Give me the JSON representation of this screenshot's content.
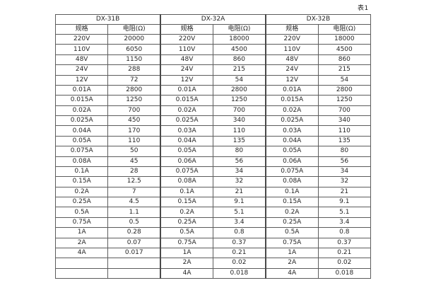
{
  "page_label": "表1",
  "table": {
    "groups": [
      {
        "name": "DX-31B",
        "col_headers": [
          "规格",
          "电阻(Ω)"
        ]
      },
      {
        "name": "DX-32A",
        "col_headers": [
          "规格",
          "电阻(Ω)"
        ]
      },
      {
        "name": "DX-32B",
        "col_headers": [
          "规格",
          "电阻(Ω)"
        ]
      }
    ],
    "rows": [
      [
        "220V",
        "20000",
        "220V",
        "18000",
        "220V",
        "18000"
      ],
      [
        "110V",
        "6050",
        "110V",
        "4500",
        "110V",
        "4500"
      ],
      [
        "48V",
        "1150",
        "48V",
        "860",
        "48V",
        "860"
      ],
      [
        "24V",
        "288",
        "24V",
        "215",
        "24V",
        "215"
      ],
      [
        "12V",
        "72",
        "12V",
        "54",
        "12V",
        "54"
      ],
      [
        "0.01A",
        "2800",
        "0.01A",
        "2800",
        "0.01A",
        "2800"
      ],
      [
        "0.015A",
        "1250",
        "0.015A",
        "1250",
        "0.015A",
        "1250"
      ],
      [
        "0.02A",
        "700",
        "0.02A",
        "700",
        "0.02A",
        "700"
      ],
      [
        "0.025A",
        "450",
        "0.025A",
        "340",
        "0.025A",
        "340"
      ],
      [
        "0.04A",
        "170",
        "0.03A",
        "110",
        "0.03A",
        "110"
      ],
      [
        "0.05A",
        "110",
        "0.04A",
        "135",
        "0.04A",
        "135"
      ],
      [
        "0.075A",
        "50",
        "0.05A",
        "80",
        "0.05A",
        "80"
      ],
      [
        "0.08A",
        "45",
        "0.06A",
        "56",
        "0.06A",
        "56"
      ],
      [
        "0.1A",
        "28",
        "0.075A",
        "34",
        "0.075A",
        "34"
      ],
      [
        "0.15A",
        "12.5",
        "0.08A",
        "32",
        "0.08A",
        "32"
      ],
      [
        "0.2A",
        "7",
        "0.1A",
        "21",
        "0.1A",
        "21"
      ],
      [
        "0.25A",
        "4.5",
        "0.15A",
        "9.1",
        "0.15A",
        "9.1"
      ],
      [
        "0.5A",
        "1.1",
        "0.2A",
        "5.1",
        "0.2A",
        "5.1"
      ],
      [
        "0.75A",
        "0.5",
        "0.25A",
        "3.4",
        "0.25A",
        "3.4"
      ],
      [
        "1A",
        "0.28",
        "0.5A",
        "0.8",
        "0.5A",
        "0.8"
      ],
      [
        "2A",
        "0.07",
        "0.75A",
        "0.37",
        "0.75A",
        "0.37"
      ],
      [
        "4A",
        "0.017",
        "1A",
        "0.21",
        "1A",
        "0.21"
      ],
      [
        "",
        "",
        "2A",
        "0.02",
        "2A",
        "0.02"
      ],
      [
        "",
        "",
        "4A",
        "0.018",
        "4A",
        "0.018"
      ]
    ]
  },
  "colors": {
    "background": "#ffffff",
    "border": "#5c5c5c",
    "text": "#262626"
  }
}
